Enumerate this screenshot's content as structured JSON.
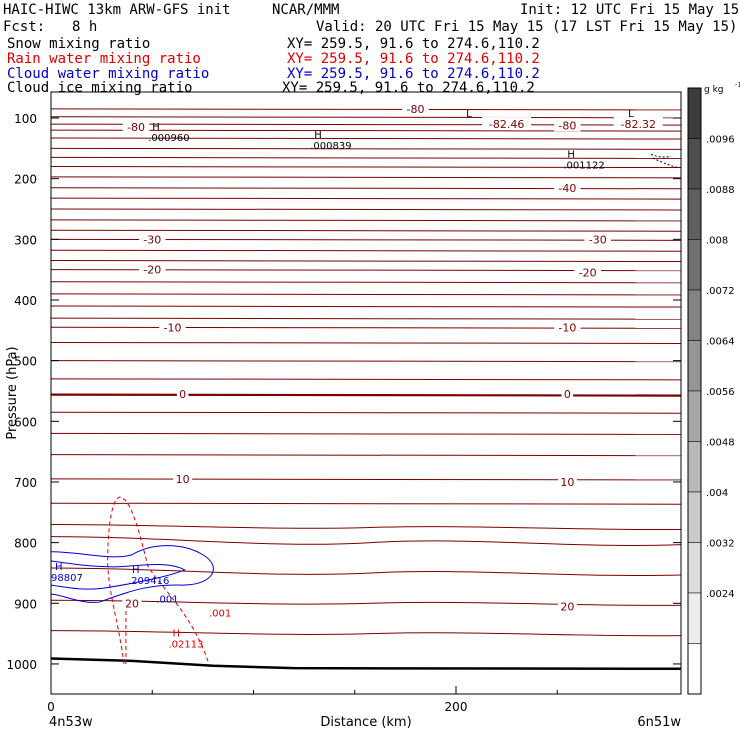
{
  "header": {
    "title": "HAIC-HIWC 13km ARW-GFS init",
    "org": "NCAR/MMM",
    "init": "Init: 12 UTC Fri 15 May 15",
    "fcst_label": "Fcst:",
    "fcst_value": "8 h",
    "valid": "Valid: 20 UTC Fri 15 May 15 (17 LST Fri 15 May 15)"
  },
  "fields": [
    {
      "name": "Snow mixing ratio",
      "xy": "XY= 259.5, 91.6 to 274.6,110.2",
      "color": "#000000"
    },
    {
      "name": "Rain water mixing ratio",
      "xy": "XY= 259.5, 91.6 to 274.6,110.2",
      "color": "#e00000"
    },
    {
      "name": "Cloud water mixing ratio",
      "xy": "XY= 259.5, 91.6 to 274.6,110.2",
      "color": "#0000cc"
    },
    {
      "name": "Cloud ice mixing ratio",
      "xy": "XY= 259.5, 91.6 to 274.6,110.2",
      "color": "#000000"
    }
  ],
  "colorbar": {
    "unit": "g kg",
    "unit_sup": "-1",
    "ticks": [
      ".0096",
      ".0088",
      ".008",
      ".0072",
      ".0064",
      ".0056",
      ".0048",
      ".004",
      ".0032",
      ".0024"
    ]
  },
  "chart_data": {
    "type": "contour",
    "xlabel": "Distance (km)",
    "ylabel": "Pressure (hPa)",
    "xlim": [
      0,
      300
    ],
    "ylim": [
      1050,
      50
    ],
    "x_ticks": [
      0,
      200
    ],
    "y_ticks": [
      100,
      200,
      300,
      400,
      500,
      600,
      700,
      800,
      900,
      1000
    ],
    "left_endpoint": "4n53w",
    "right_endpoint": "6n51w",
    "isotherm_labels": [
      {
        "text": "-80",
        "x": 180,
        "p": 85
      },
      {
        "text": "-80",
        "x": 42,
        "p": 115
      },
      {
        "text": "-82.46",
        "x": 225,
        "p": 110
      },
      {
        "text": "-80",
        "x": 255,
        "p": 112
      },
      {
        "text": "-82.32",
        "x": 290,
        "p": 110
      },
      {
        "text": "-40",
        "x": 255,
        "p": 215
      },
      {
        "text": "-30",
        "x": 50,
        "p": 300
      },
      {
        "text": "-30",
        "x": 270,
        "p": 300
      },
      {
        "text": "-20",
        "x": 50,
        "p": 350
      },
      {
        "text": "-20",
        "x": 265,
        "p": 355
      },
      {
        "text": "-10",
        "x": 60,
        "p": 445
      },
      {
        "text": "-10",
        "x": 255,
        "p": 445
      },
      {
        "text": "0",
        "x": 65,
        "p": 555
      },
      {
        "text": "0",
        "x": 255,
        "p": 555
      },
      {
        "text": "10",
        "x": 65,
        "p": 695
      },
      {
        "text": "10",
        "x": 255,
        "p": 700
      },
      {
        "text": "20",
        "x": 40,
        "p": 900
      },
      {
        "text": "20",
        "x": 255,
        "p": 905
      }
    ],
    "extrema": [
      {
        "mark": "H",
        "value": ".000960",
        "x": 50,
        "p": 120,
        "color": "#000000"
      },
      {
        "mark": "H",
        "value": ".000839",
        "x": 130,
        "p": 133,
        "color": "#000000"
      },
      {
        "mark": "H",
        "value": ".001122",
        "x": 255,
        "p": 165,
        "color": "#000000"
      },
      {
        "mark": "L",
        "value": "",
        "x": 205,
        "p": 98,
        "color": "#000000"
      },
      {
        "mark": "L",
        "value": "",
        "x": 285,
        "p": 98,
        "color": "#000000"
      },
      {
        "mark": "H",
        "value": "98807",
        "x": 2,
        "p": 845,
        "color": "#0000cc"
      },
      {
        "mark": "H",
        "value": ".209416",
        "x": 40,
        "p": 850,
        "color": "#0000cc"
      },
      {
        "mark": "H",
        "value": ".02113",
        "x": 60,
        "p": 955,
        "color": "#e00000"
      }
    ],
    "contour_value_labels": [
      {
        "text": ".001",
        "x": 52,
        "p": 899,
        "color": "#0000cc"
      },
      {
        "text": ".001",
        "x": 78,
        "p": 922,
        "color": "#e00000"
      }
    ]
  }
}
